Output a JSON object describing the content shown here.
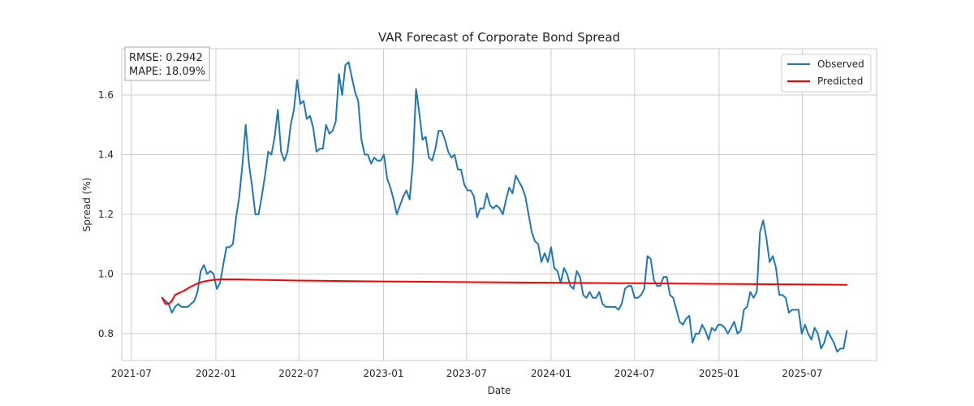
{
  "chart_data": {
    "type": "line",
    "title": "VAR Forecast of Corporate Bond Spread",
    "xlabel": "Date",
    "ylabel": "Spread (%)",
    "xlim": [
      "2021-06-10",
      "2025-12-10"
    ],
    "ylim": [
      0.71,
      1.755
    ],
    "grid": true,
    "legend_position": "top-right",
    "x_ticks": [
      "2021-07",
      "2022-01",
      "2022-07",
      "2023-01",
      "2023-07",
      "2024-01",
      "2024-07",
      "2025-01",
      "2025-07"
    ],
    "y_ticks": [
      0.8,
      1.0,
      1.2,
      1.4,
      1.6
    ],
    "metrics": {
      "rmse": "RMSE: 0.2942",
      "mape": "MAPE: 18.09%"
    },
    "colors": {
      "observed": "#1f77b4",
      "predicted": "#ff0000"
    },
    "series": [
      {
        "name": "Observed",
        "color": "#1f77b4",
        "points": [
          [
            "2021-09-06",
            0.92
          ],
          [
            "2021-09-13",
            0.91
          ],
          [
            "2021-09-20",
            0.9
          ],
          [
            "2021-09-27",
            0.87
          ],
          [
            "2021-10-04",
            0.89
          ],
          [
            "2021-10-11",
            0.9
          ],
          [
            "2021-10-18",
            0.89
          ],
          [
            "2021-10-25",
            0.89
          ],
          [
            "2021-11-01",
            0.89
          ],
          [
            "2021-11-08",
            0.9
          ],
          [
            "2021-11-15",
            0.91
          ],
          [
            "2021-11-22",
            0.94
          ],
          [
            "2021-11-29",
            1.01
          ],
          [
            "2021-12-06",
            1.03
          ],
          [
            "2021-12-13",
            1.0
          ],
          [
            "2021-12-20",
            1.01
          ],
          [
            "2021-12-27",
            1.0
          ],
          [
            "2022-01-03",
            0.95
          ],
          [
            "2022-01-10",
            0.97
          ],
          [
            "2022-01-17",
            1.03
          ],
          [
            "2022-01-24",
            1.09
          ],
          [
            "2022-01-31",
            1.09
          ],
          [
            "2022-02-07",
            1.1
          ],
          [
            "2022-02-14",
            1.19
          ],
          [
            "2022-02-21",
            1.26
          ],
          [
            "2022-02-28",
            1.37
          ],
          [
            "2022-03-07",
            1.5
          ],
          [
            "2022-03-14",
            1.37
          ],
          [
            "2022-03-21",
            1.29
          ],
          [
            "2022-03-28",
            1.2
          ],
          [
            "2022-04-04",
            1.2
          ],
          [
            "2022-04-11",
            1.26
          ],
          [
            "2022-04-18",
            1.33
          ],
          [
            "2022-04-25",
            1.41
          ],
          [
            "2022-05-02",
            1.4
          ],
          [
            "2022-05-09",
            1.46
          ],
          [
            "2022-05-16",
            1.55
          ],
          [
            "2022-05-23",
            1.41
          ],
          [
            "2022-05-30",
            1.38
          ],
          [
            "2022-06-06",
            1.41
          ],
          [
            "2022-06-13",
            1.5
          ],
          [
            "2022-06-20",
            1.55
          ],
          [
            "2022-06-27",
            1.65
          ],
          [
            "2022-07-04",
            1.57
          ],
          [
            "2022-07-11",
            1.58
          ],
          [
            "2022-07-18",
            1.52
          ],
          [
            "2022-07-25",
            1.53
          ],
          [
            "2022-08-01",
            1.49
          ],
          [
            "2022-08-08",
            1.41
          ],
          [
            "2022-08-15",
            1.42
          ],
          [
            "2022-08-22",
            1.42
          ],
          [
            "2022-08-29",
            1.5
          ],
          [
            "2022-09-05",
            1.47
          ],
          [
            "2022-09-12",
            1.48
          ],
          [
            "2022-09-19",
            1.51
          ],
          [
            "2022-09-26",
            1.67
          ],
          [
            "2022-10-03",
            1.6
          ],
          [
            "2022-10-10",
            1.7
          ],
          [
            "2022-10-17",
            1.71
          ],
          [
            "2022-10-24",
            1.66
          ],
          [
            "2022-10-31",
            1.61
          ],
          [
            "2022-11-07",
            1.58
          ],
          [
            "2022-11-14",
            1.45
          ],
          [
            "2022-11-21",
            1.4
          ],
          [
            "2022-11-28",
            1.4
          ],
          [
            "2022-12-05",
            1.37
          ],
          [
            "2022-12-12",
            1.39
          ],
          [
            "2022-12-19",
            1.38
          ],
          [
            "2022-12-26",
            1.38
          ],
          [
            "2023-01-02",
            1.4
          ],
          [
            "2023-01-09",
            1.32
          ],
          [
            "2023-01-16",
            1.29
          ],
          [
            "2023-01-23",
            1.25
          ],
          [
            "2023-01-30",
            1.2
          ],
          [
            "2023-02-06",
            1.23
          ],
          [
            "2023-02-13",
            1.26
          ],
          [
            "2023-02-20",
            1.28
          ],
          [
            "2023-02-27",
            1.25
          ],
          [
            "2023-03-06",
            1.37
          ],
          [
            "2023-03-13",
            1.62
          ],
          [
            "2023-03-20",
            1.54
          ],
          [
            "2023-03-27",
            1.45
          ],
          [
            "2023-04-03",
            1.46
          ],
          [
            "2023-04-10",
            1.39
          ],
          [
            "2023-04-17",
            1.38
          ],
          [
            "2023-04-24",
            1.42
          ],
          [
            "2023-05-01",
            1.48
          ],
          [
            "2023-05-08",
            1.48
          ],
          [
            "2023-05-15",
            1.45
          ],
          [
            "2023-05-22",
            1.41
          ],
          [
            "2023-05-29",
            1.39
          ],
          [
            "2023-06-05",
            1.4
          ],
          [
            "2023-06-12",
            1.35
          ],
          [
            "2023-06-19",
            1.35
          ],
          [
            "2023-06-26",
            1.3
          ],
          [
            "2023-07-03",
            1.28
          ],
          [
            "2023-07-10",
            1.28
          ],
          [
            "2023-07-17",
            1.26
          ],
          [
            "2023-07-24",
            1.19
          ],
          [
            "2023-07-31",
            1.22
          ],
          [
            "2023-08-07",
            1.22
          ],
          [
            "2023-08-14",
            1.27
          ],
          [
            "2023-08-21",
            1.23
          ],
          [
            "2023-08-28",
            1.22
          ],
          [
            "2023-09-04",
            1.23
          ],
          [
            "2023-09-11",
            1.22
          ],
          [
            "2023-09-18",
            1.2
          ],
          [
            "2023-09-25",
            1.25
          ],
          [
            "2023-10-02",
            1.29
          ],
          [
            "2023-10-09",
            1.27
          ],
          [
            "2023-10-16",
            1.33
          ],
          [
            "2023-10-23",
            1.31
          ],
          [
            "2023-10-30",
            1.29
          ],
          [
            "2023-11-06",
            1.26
          ],
          [
            "2023-11-13",
            1.2
          ],
          [
            "2023-11-20",
            1.14
          ],
          [
            "2023-11-27",
            1.11
          ],
          [
            "2023-12-04",
            1.1
          ],
          [
            "2023-12-11",
            1.04
          ],
          [
            "2023-12-18",
            1.07
          ],
          [
            "2023-12-25",
            1.04
          ],
          [
            "2024-01-01",
            1.09
          ],
          [
            "2024-01-08",
            1.02
          ],
          [
            "2024-01-15",
            1.01
          ],
          [
            "2024-01-22",
            0.97
          ],
          [
            "2024-01-29",
            1.02
          ],
          [
            "2024-02-05",
            1.0
          ],
          [
            "2024-02-12",
            0.96
          ],
          [
            "2024-02-19",
            0.95
          ],
          [
            "2024-02-26",
            1.01
          ],
          [
            "2024-03-04",
            0.99
          ],
          [
            "2024-03-11",
            0.93
          ],
          [
            "2024-03-18",
            0.92
          ],
          [
            "2024-03-25",
            0.94
          ],
          [
            "2024-04-01",
            0.92
          ],
          [
            "2024-04-08",
            0.92
          ],
          [
            "2024-04-15",
            0.94
          ],
          [
            "2024-04-22",
            0.9
          ],
          [
            "2024-04-29",
            0.89
          ],
          [
            "2024-05-06",
            0.89
          ],
          [
            "2024-05-13",
            0.89
          ],
          [
            "2024-05-20",
            0.89
          ],
          [
            "2024-05-27",
            0.88
          ],
          [
            "2024-06-03",
            0.9
          ],
          [
            "2024-06-10",
            0.95
          ],
          [
            "2024-06-17",
            0.96
          ],
          [
            "2024-06-24",
            0.96
          ],
          [
            "2024-07-01",
            0.92
          ],
          [
            "2024-07-08",
            0.92
          ],
          [
            "2024-07-15",
            0.93
          ],
          [
            "2024-07-22",
            0.95
          ],
          [
            "2024-07-29",
            1.06
          ],
          [
            "2024-08-05",
            1.05
          ],
          [
            "2024-08-12",
            0.98
          ],
          [
            "2024-08-19",
            0.96
          ],
          [
            "2024-08-26",
            0.96
          ],
          [
            "2024-09-02",
            0.99
          ],
          [
            "2024-09-09",
            0.99
          ],
          [
            "2024-09-16",
            0.93
          ],
          [
            "2024-09-23",
            0.92
          ],
          [
            "2024-09-30",
            0.88
          ],
          [
            "2024-10-07",
            0.84
          ],
          [
            "2024-10-14",
            0.83
          ],
          [
            "2024-10-21",
            0.85
          ],
          [
            "2024-10-28",
            0.86
          ],
          [
            "2024-11-04",
            0.77
          ],
          [
            "2024-11-11",
            0.8
          ],
          [
            "2024-11-18",
            0.8
          ],
          [
            "2024-11-25",
            0.83
          ],
          [
            "2024-12-02",
            0.81
          ],
          [
            "2024-12-09",
            0.78
          ],
          [
            "2024-12-16",
            0.82
          ],
          [
            "2024-12-23",
            0.81
          ],
          [
            "2024-12-30",
            0.83
          ],
          [
            "2025-01-06",
            0.83
          ],
          [
            "2025-01-13",
            0.82
          ],
          [
            "2025-01-20",
            0.8
          ],
          [
            "2025-01-27",
            0.82
          ],
          [
            "2025-02-03",
            0.84
          ],
          [
            "2025-02-10",
            0.8
          ],
          [
            "2025-02-17",
            0.81
          ],
          [
            "2025-02-24",
            0.88
          ],
          [
            "2025-03-03",
            0.89
          ],
          [
            "2025-03-10",
            0.94
          ],
          [
            "2025-03-17",
            0.92
          ],
          [
            "2025-03-24",
            0.94
          ],
          [
            "2025-03-31",
            1.14
          ],
          [
            "2025-04-07",
            1.18
          ],
          [
            "2025-04-14",
            1.12
          ],
          [
            "2025-04-21",
            1.04
          ],
          [
            "2025-04-28",
            1.06
          ],
          [
            "2025-05-05",
            1.02
          ],
          [
            "2025-05-12",
            0.93
          ],
          [
            "2025-05-19",
            0.93
          ],
          [
            "2025-05-26",
            0.92
          ],
          [
            "2025-06-02",
            0.87
          ],
          [
            "2025-06-09",
            0.88
          ],
          [
            "2025-06-16",
            0.88
          ],
          [
            "2025-06-23",
            0.88
          ],
          [
            "2025-06-30",
            0.8
          ],
          [
            "2025-07-07",
            0.83
          ],
          [
            "2025-07-14",
            0.8
          ],
          [
            "2025-07-21",
            0.78
          ],
          [
            "2025-07-28",
            0.82
          ],
          [
            "2025-08-04",
            0.8
          ],
          [
            "2025-08-11",
            0.75
          ],
          [
            "2025-08-18",
            0.77
          ],
          [
            "2025-08-25",
            0.81
          ],
          [
            "2025-09-01",
            0.79
          ],
          [
            "2025-09-08",
            0.77
          ],
          [
            "2025-09-15",
            0.74
          ],
          [
            "2025-09-22",
            0.75
          ],
          [
            "2025-09-29",
            0.75
          ],
          [
            "2025-10-06",
            0.81
          ]
        ]
      },
      {
        "name": "Predicted",
        "color": "#ff0000",
        "points": [
          [
            "2021-09-06",
            0.92
          ],
          [
            "2021-09-13",
            0.9
          ],
          [
            "2021-09-20",
            0.9
          ],
          [
            "2021-09-27",
            0.91
          ],
          [
            "2021-10-04",
            0.93
          ],
          [
            "2021-10-11",
            0.935
          ],
          [
            "2021-10-18",
            0.94
          ],
          [
            "2021-10-25",
            0.945
          ],
          [
            "2021-11-01",
            0.952
          ],
          [
            "2021-11-08",
            0.958
          ],
          [
            "2021-11-15",
            0.963
          ],
          [
            "2021-11-22",
            0.968
          ],
          [
            "2021-11-29",
            0.972
          ],
          [
            "2021-12-06",
            0.975
          ],
          [
            "2021-12-13",
            0.977
          ],
          [
            "2021-12-20",
            0.979
          ],
          [
            "2021-12-27",
            0.98
          ],
          [
            "2022-01-03",
            0.981
          ],
          [
            "2022-01-10",
            0.982
          ],
          [
            "2022-01-17",
            0.982
          ],
          [
            "2022-02-14",
            0.982
          ],
          [
            "2022-03-14",
            0.981
          ],
          [
            "2022-04-18",
            0.98
          ],
          [
            "2022-06-27",
            0.978
          ],
          [
            "2022-12-26",
            0.975
          ],
          [
            "2023-06-26",
            0.973
          ],
          [
            "2023-12-25",
            0.971
          ],
          [
            "2024-06-24",
            0.969
          ],
          [
            "2024-12-23",
            0.967
          ],
          [
            "2025-06-23",
            0.965
          ],
          [
            "2025-10-06",
            0.964
          ]
        ]
      }
    ]
  }
}
